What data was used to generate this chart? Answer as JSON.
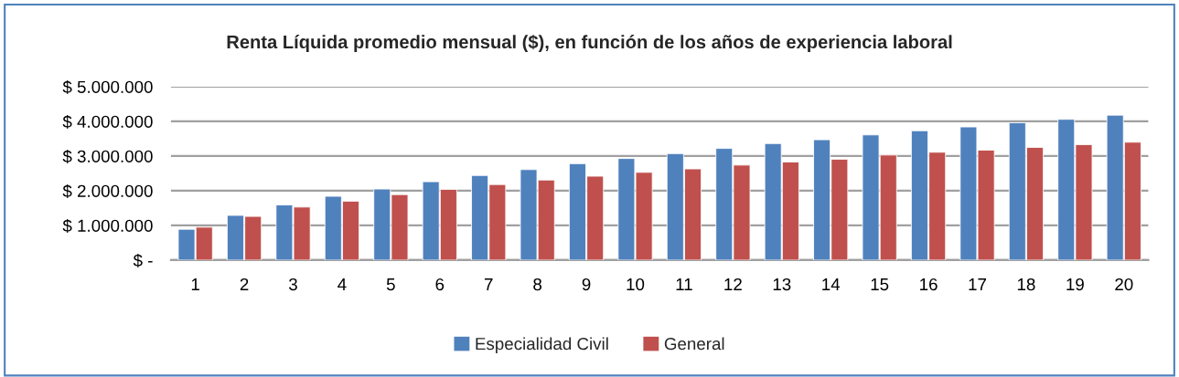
{
  "chart_data": {
    "type": "bar",
    "title": "Renta Líquida promedio mensual ($), en función de los años de experiencia laboral",
    "categories": [
      "1",
      "2",
      "3",
      "4",
      "5",
      "6",
      "7",
      "8",
      "9",
      "10",
      "11",
      "12",
      "13",
      "14",
      "15",
      "16",
      "17",
      "18",
      "19",
      "20"
    ],
    "series": [
      {
        "name": "Especialidad Civil",
        "color": "#4f81bd",
        "values": [
          890000,
          1290000,
          1590000,
          1840000,
          2050000,
          2260000,
          2440000,
          2610000,
          2780000,
          2930000,
          3070000,
          3220000,
          3360000,
          3470000,
          3610000,
          3730000,
          3840000,
          3960000,
          4060000,
          4180000
        ]
      },
      {
        "name": "General",
        "color": "#c0504d",
        "values": [
          950000,
          1260000,
          1530000,
          1700000,
          1890000,
          2040000,
          2180000,
          2310000,
          2420000,
          2530000,
          2630000,
          2740000,
          2830000,
          2910000,
          3030000,
          3110000,
          3170000,
          3250000,
          3330000,
          3400000
        ]
      }
    ],
    "ylim": [
      0,
      5000000
    ],
    "yticks": [
      {
        "value": 0,
        "label": "$ -"
      },
      {
        "value": 1000000,
        "label": "$ 1.000.000"
      },
      {
        "value": 2000000,
        "label": "$ 2.000.000"
      },
      {
        "value": 3000000,
        "label": "$ 3.000.000"
      },
      {
        "value": 4000000,
        "label": "$ 4.000.000"
      },
      {
        "value": 5000000,
        "label": "$ 5.000.000"
      }
    ],
    "grid": "y",
    "legend": "bottom"
  }
}
